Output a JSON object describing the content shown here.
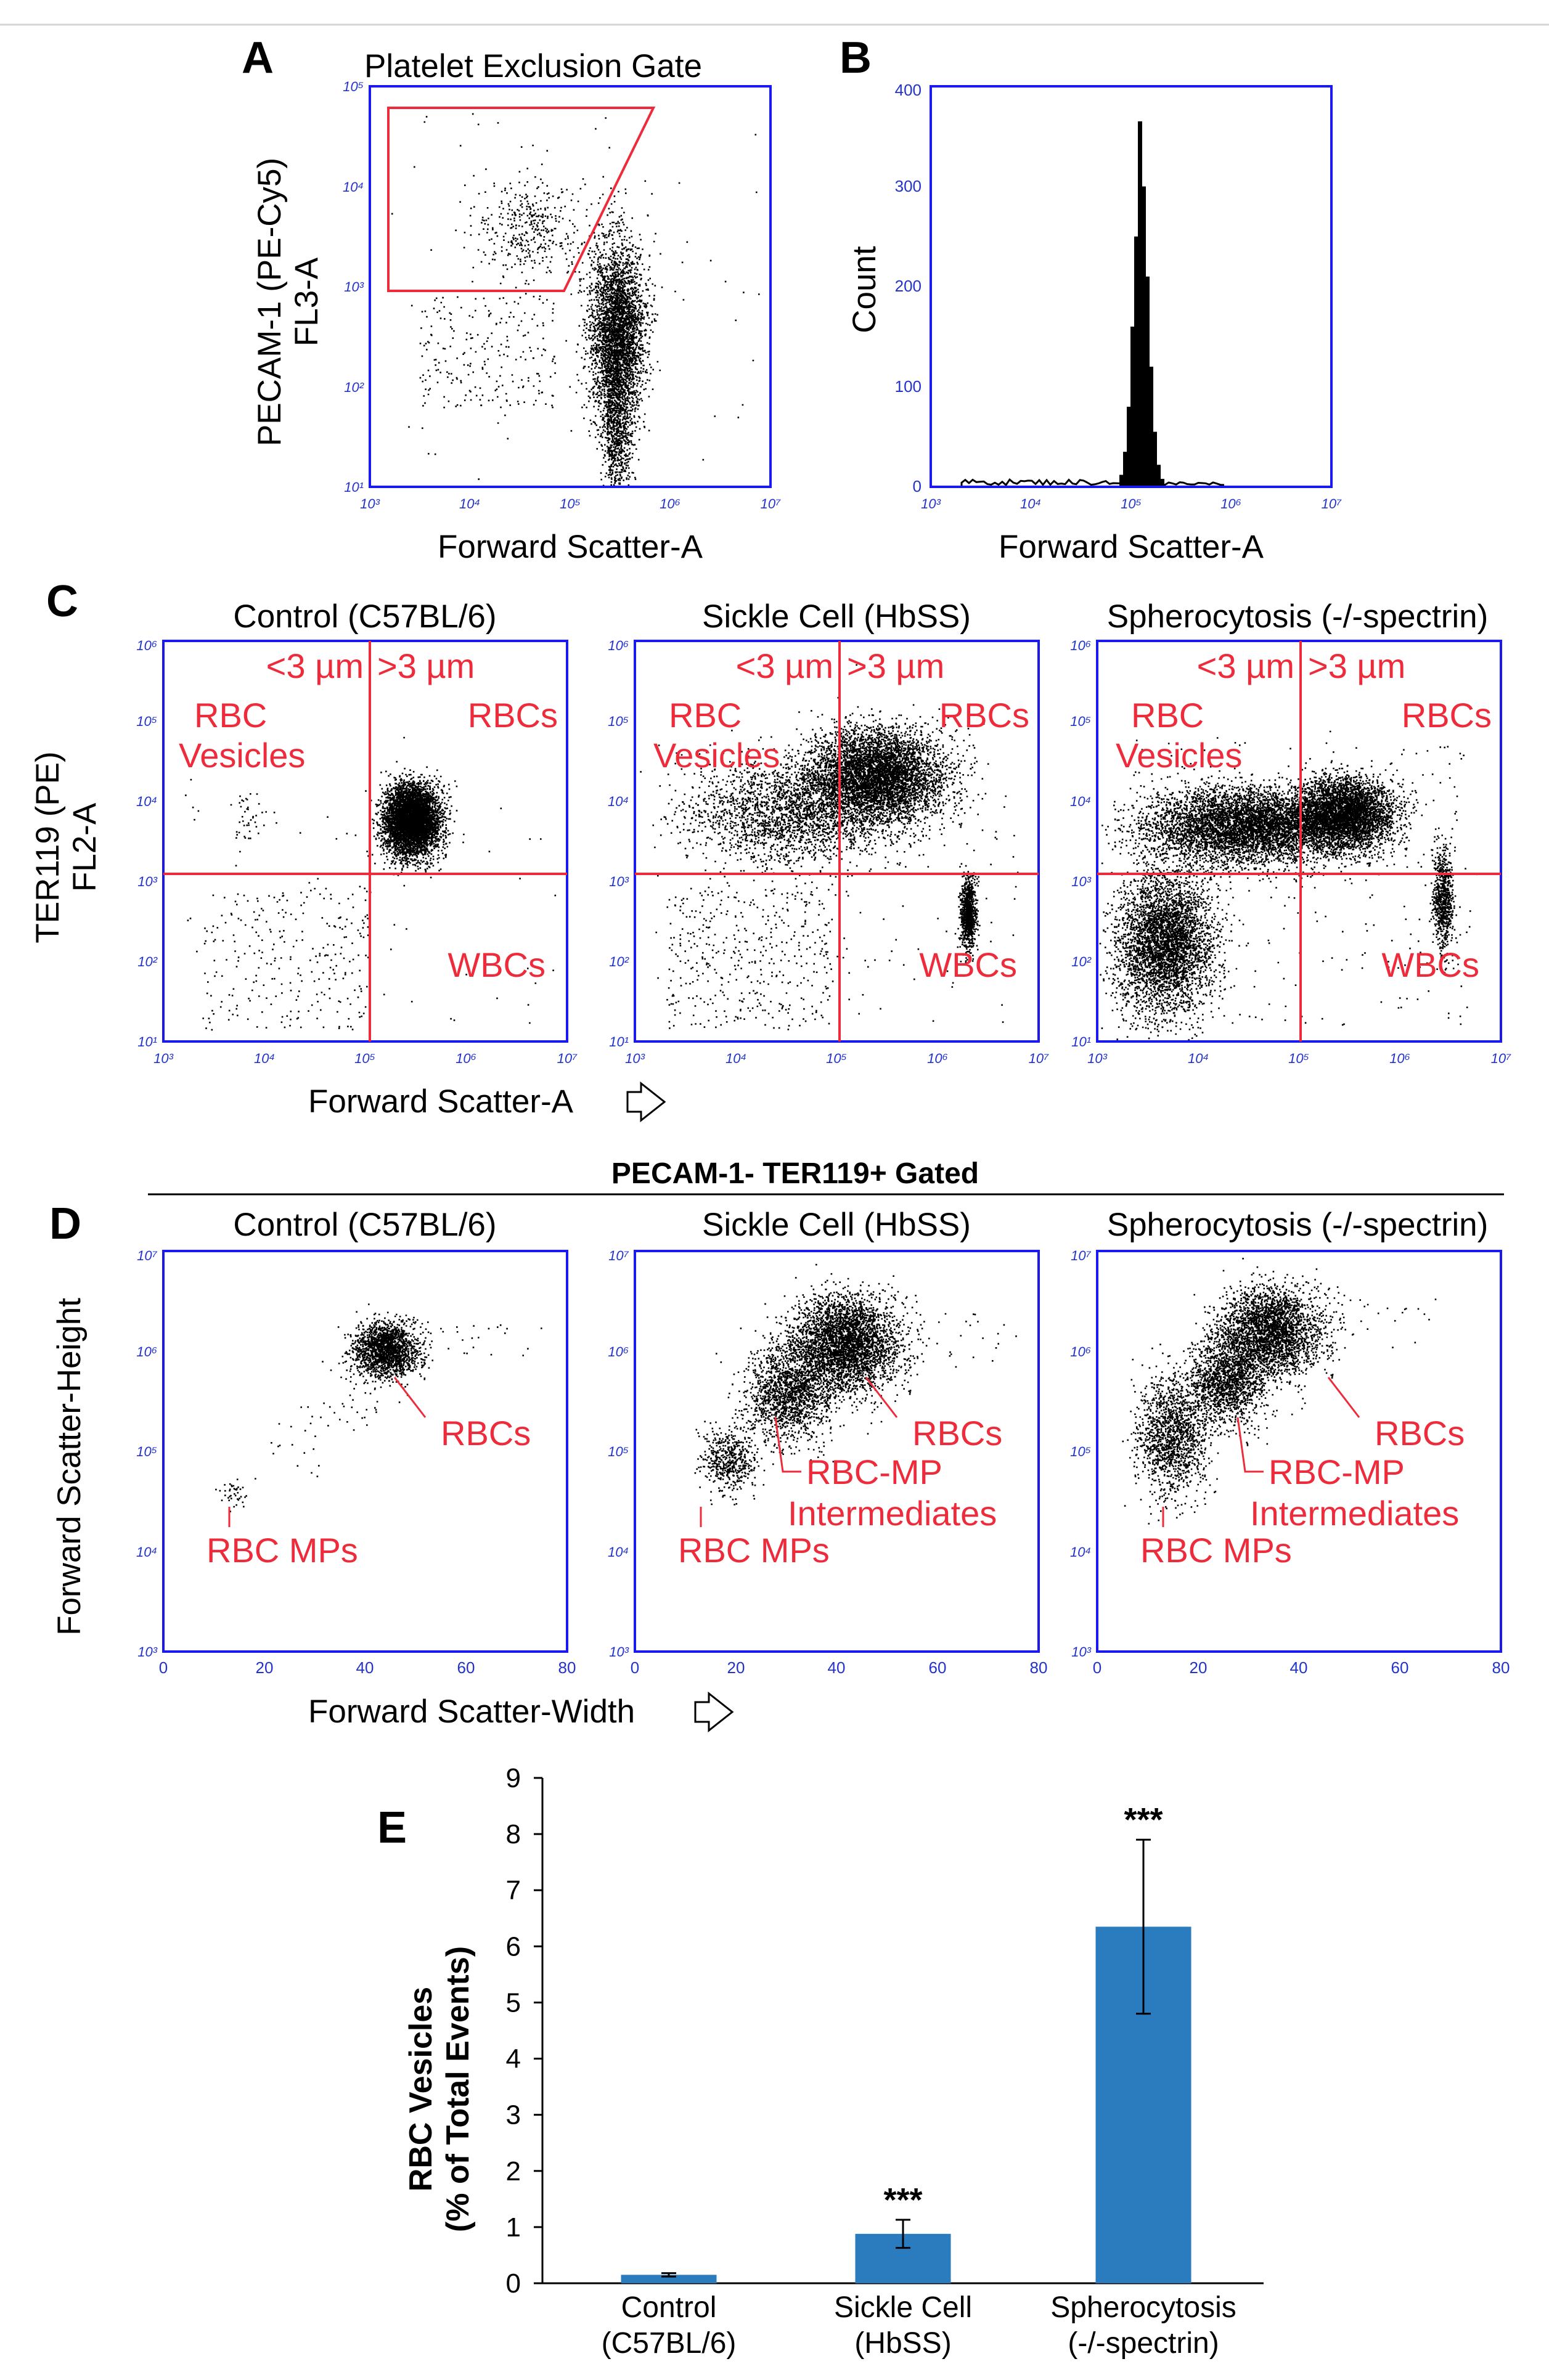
{
  "panels": {
    "A": {
      "letter": "A",
      "title": "Platelet Exclusion Gate",
      "ylabel_line1": "PECAM-1 (PE-Cy5)",
      "ylabel_line2": "FL3-A",
      "xlabel": "Forward Scatter-A",
      "xticks": [
        "10³",
        "10⁴",
        "10⁵",
        "10⁶",
        "10⁷"
      ],
      "yticks": [
        "10¹",
        "10²",
        "10³",
        "10⁴",
        "10⁵"
      ]
    },
    "B": {
      "letter": "B",
      "ylabel": "Count",
      "xlabel": "Forward Scatter-A",
      "xticks": [
        "10³",
        "10⁴",
        "10⁵",
        "10⁶",
        "10⁷"
      ],
      "yticks": [
        "0",
        "100",
        "200",
        "300",
        "400"
      ],
      "peak_count": 365
    },
    "C": {
      "letter": "C",
      "titles": [
        "Control (C57BL/6)",
        "Sickle Cell (HbSS)",
        "Spherocytosis (-/-spectrin)"
      ],
      "ylabel_line1": "TER119 (PE)",
      "ylabel_line2": "FL2-A",
      "xlabel": "Forward Scatter-A",
      "lt3": "<3 µm",
      "gt3": ">3 µm",
      "rbc_vesicles_1": "RBC",
      "rbc_vesicles_2": "Vesicles",
      "rbcs": "RBCs",
      "wbcs": "WBCs",
      "xticks": [
        "10³",
        "10⁴",
        "10⁵",
        "10⁶",
        "10⁷"
      ],
      "yticks": [
        "10¹",
        "10²",
        "10³",
        "10⁴",
        "10⁵",
        "10⁶"
      ]
    },
    "D": {
      "letter": "D",
      "header": "PECAM-1- TER119+ Gated",
      "titles": [
        "Control (C57BL/6)",
        "Sickle Cell (HbSS)",
        "Spherocytosis (-/-spectrin)"
      ],
      "ylabel": "Forward Scatter-Height",
      "xlabel": "Forward Scatter-Width",
      "rbcs": "RBCs",
      "rbc_mps": "RBC MPs",
      "intermediates_1": "RBC-MP",
      "intermediates_2": "Intermediates",
      "xticks": [
        "0",
        "20",
        "40",
        "60",
        "80"
      ],
      "yticks": [
        "10³",
        "10⁴",
        "10⁵",
        "10⁶",
        "10⁷"
      ]
    },
    "E": {
      "letter": "E"
    }
  },
  "colors": {
    "axis_frame": "#1a1aee",
    "gate_red": "#ee2b3b",
    "bar_blue": "#2b7bbf"
  },
  "chart_data": {
    "type": "bar",
    "title": "",
    "ylabel": "RBC Vesicles (% of Total Events)",
    "ylabel_line1": "RBC Vesicles",
    "ylabel_line2": "(% of Total Events)",
    "ylim": [
      0,
      9
    ],
    "yticks": [
      "0",
      "1",
      "2",
      "3",
      "4",
      "5",
      "6",
      "7",
      "8",
      "9"
    ],
    "categories": [
      {
        "line1": "Control",
        "line2": "(C57BL/6)"
      },
      {
        "line1": "Sickle Cell",
        "line2": "(HbSS)"
      },
      {
        "line1": "Spherocytosis",
        "line2": "(-/-spectrin)"
      }
    ],
    "values": [
      0.15,
      0.88,
      6.35
    ],
    "errors": [
      0.03,
      0.25,
      1.55
    ],
    "significance": [
      "",
      "***",
      "***"
    ]
  }
}
